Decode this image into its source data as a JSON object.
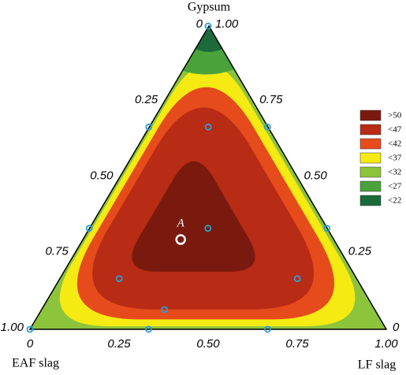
{
  "chart_data": {
    "type": "ternary",
    "axes": {
      "top": "Gypsum",
      "left": "EAF slag",
      "right": "LF slag"
    },
    "left_ticks": [
      0,
      {
        "value": 0.25,
        "label": "0.25"
      },
      {
        "value": 0.5,
        "label": "0.50"
      },
      {
        "value": 0.75,
        "label": "0.75"
      },
      {
        "value": 1,
        "label": "1.00"
      }
    ],
    "right_ticks": [
      {
        "value": 1,
        "label": "1.00"
      },
      {
        "value": 0.75,
        "label": "0.75"
      },
      {
        "value": 0.5,
        "label": "0.50"
      },
      {
        "value": 0.25,
        "label": "0.25"
      },
      0
    ],
    "bottom_ticks": [
      0,
      {
        "value": 0.25,
        "label": "0.25"
      },
      {
        "value": 0.5,
        "label": "0.50"
      },
      {
        "value": 0.75,
        "label": "0.75"
      },
      {
        "value": 1,
        "label": "1.00"
      }
    ],
    "levels": [
      {
        "value": 50,
        "label": ">50"
      },
      {
        "value": 47,
        "label": "<47"
      },
      {
        "value": 42,
        "label": "<42"
      },
      {
        "value": 37,
        "label": "<37"
      },
      {
        "value": 32,
        "label": "<32"
      },
      {
        "value": 27,
        "label": "<27"
      },
      {
        "value": 22,
        "label": "<22"
      }
    ],
    "level_colors": [
      "#7a1a0e",
      "#b82b15",
      "#e64b1c",
      "#f5ea12",
      "#8cc43c",
      "#4aa33a",
      "#1b6b3a"
    ],
    "points": {
      "gypsum": [
        1,
        0.667,
        0.333,
        0,
        0,
        0,
        0.667,
        0.333,
        0.667,
        0.333,
        0.167,
        0.167,
        0.065
      ],
      "eaf_slag": [
        0,
        0.333,
        0.667,
        1,
        0.667,
        0.333,
        0,
        0,
        0.167,
        0.333,
        0.667,
        0.167,
        0.59
      ],
      "lf_slag": [
        0,
        0,
        0,
        0,
        0.333,
        0.667,
        0.333,
        0.667,
        0.167,
        0.333,
        0.167,
        0.667,
        0.345
      ]
    },
    "point_A": {
      "label": "A",
      "gypsum": 0.296,
      "eaf_slag": 0.429,
      "lf_slag": 0.275
    }
  }
}
